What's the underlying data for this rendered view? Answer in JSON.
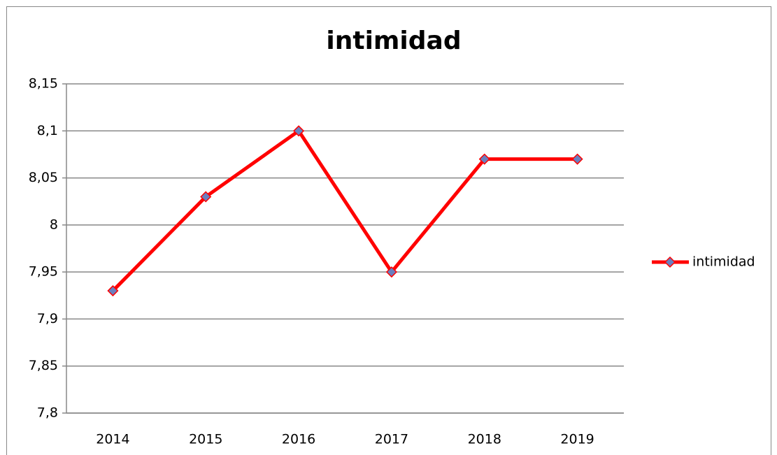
{
  "chart_data": {
    "type": "line",
    "title": "intimidad",
    "categories": [
      "2014",
      "2015",
      "2016",
      "2017",
      "2018",
      "2019"
    ],
    "series": [
      {
        "name": "intimidad",
        "color": "#ff0000",
        "marker_color": "#6a7fbf",
        "values": [
          7.93,
          8.03,
          8.1,
          7.95,
          8.07,
          8.07
        ]
      }
    ],
    "ylim": [
      7.8,
      8.15
    ],
    "yticks": [
      {
        "value": 7.8,
        "label": "7,8"
      },
      {
        "value": 7.85,
        "label": "7,85"
      },
      {
        "value": 7.9,
        "label": "7,9"
      },
      {
        "value": 7.95,
        "label": "7,95"
      },
      8,
      {
        "value": 8.05,
        "label": "8,05"
      },
      {
        "value": 8.1,
        "label": "8,1"
      },
      {
        "value": 8.15,
        "label": "8,15"
      }
    ],
    "grid": true,
    "legend": "right"
  }
}
